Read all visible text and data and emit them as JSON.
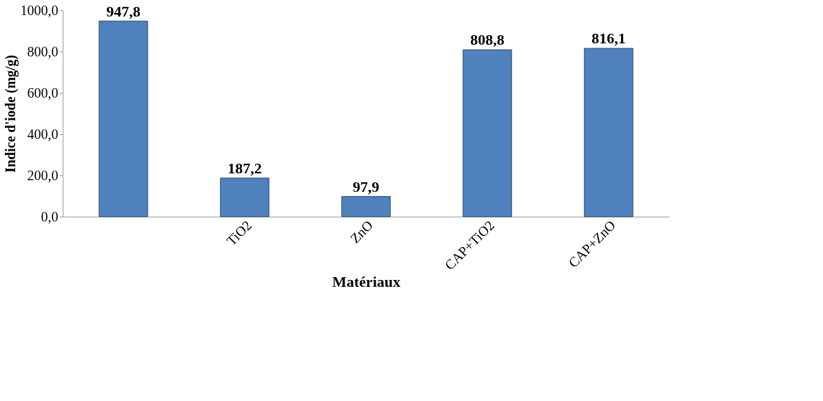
{
  "chart_data": {
    "type": "bar",
    "xlabel": "Matériaux",
    "ylabel": "Indice d'iode (mg/g)",
    "categories": [
      null,
      "TiO2",
      "ZnO",
      "CAP+TiO2",
      "CAP+ZnO"
    ],
    "values": [
      947.8,
      187.2,
      97.9,
      808.8,
      816.1
    ],
    "value_labels": [
      "947,8",
      "187,2",
      "97,9",
      "808,8",
      "816,1"
    ],
    "color": "#4f81bd",
    "ylim": [
      0,
      1000
    ],
    "yticks": [
      {
        "value": 0,
        "label": "0,0"
      },
      {
        "value": 200,
        "label": "200,0"
      },
      {
        "value": 400,
        "label": "400,0"
      },
      {
        "value": 600,
        "label": "600,0"
      },
      {
        "value": 800,
        "label": "800,0"
      },
      {
        "value": 1000,
        "label": "1000,0"
      }
    ],
    "grid": false
  }
}
